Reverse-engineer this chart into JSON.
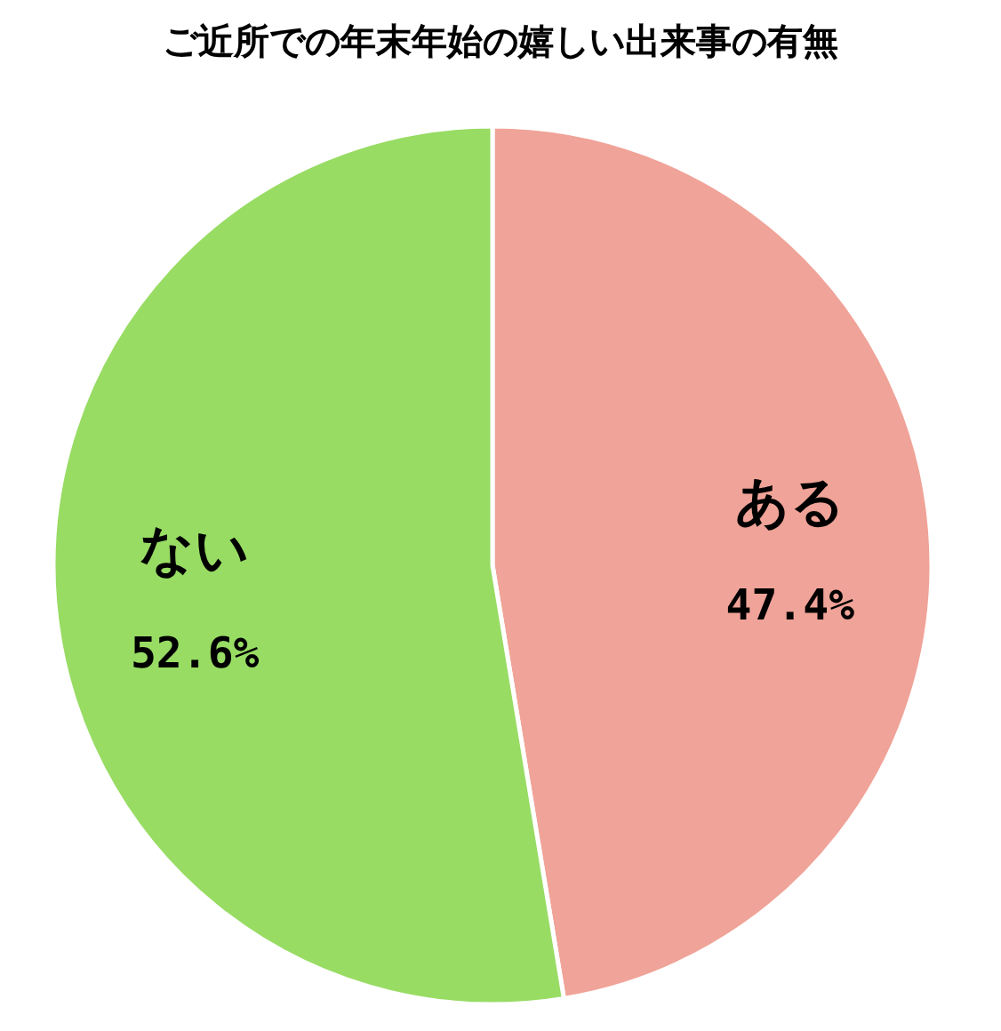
{
  "chart_data": {
    "type": "pie",
    "title": "ご近所での年末年始の嬉しい出来事の有無",
    "categories": [
      "ある",
      "ない"
    ],
    "values": [
      47.4,
      52.6
    ],
    "colors": [
      "#f0a398",
      "#98dc64"
    ],
    "value_labels": [
      "47.4%",
      "52.6%"
    ]
  }
}
